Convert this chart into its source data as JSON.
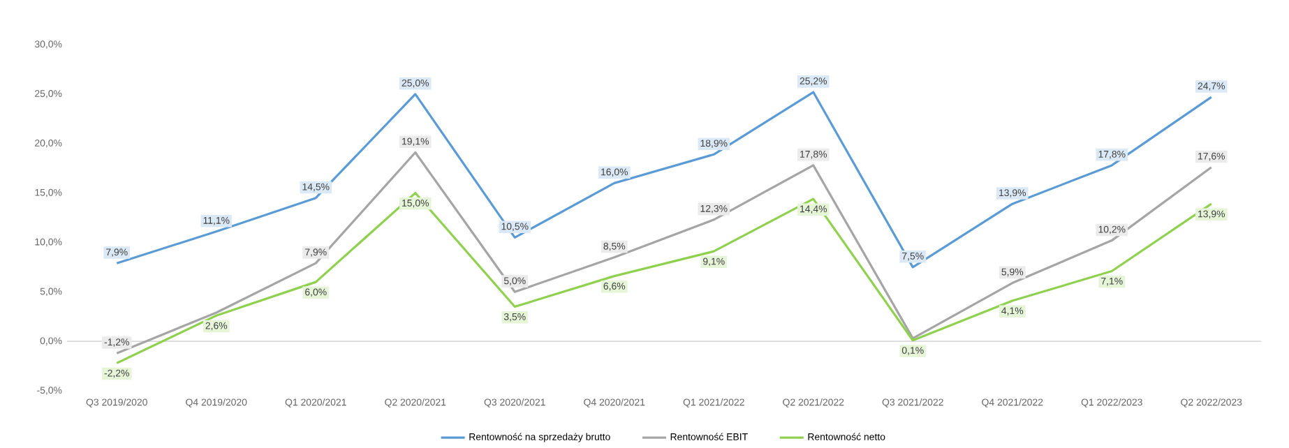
{
  "chart_data": {
    "type": "line",
    "categories": [
      "Q3 2019/2020",
      "Q4 2019/2020",
      "Q1 2020/2021",
      "Q2 2020/2021",
      "Q3 2020/2021",
      "Q4 2020/2021",
      "Q1 2021/2022",
      "Q2 2021/2022",
      "Q3 2021/2022",
      "Q4 2021/2022",
      "Q1 2022/2023",
      "Q2 2022/2023"
    ],
    "series": [
      {
        "name": "Rentowność na sprzedaży brutto",
        "color": "#5b9bd5",
        "values": [
          7.9,
          11.1,
          14.5,
          25.0,
          10.5,
          16.0,
          18.9,
          25.2,
          7.5,
          13.9,
          17.8,
          24.7
        ],
        "value_labels": [
          "7,9%",
          "11,1%",
          "14,5%",
          "25,0%",
          "10,5%",
          "16,0%",
          "18,9%",
          "25,2%",
          "7,5%",
          "13,9%",
          "17,8%",
          "24,7%"
        ]
      },
      {
        "name": "Rentowność EBIT",
        "color": "#a5a5a5",
        "values": [
          -1.2,
          2.9,
          7.9,
          19.1,
          5.0,
          8.5,
          12.3,
          17.8,
          0.3,
          5.9,
          10.2,
          17.6
        ],
        "value_labels": [
          "-1,2%",
          null,
          "7,9%",
          "19,1%",
          "5,0%",
          "8,5%",
          "12,3%",
          "17,8%",
          null,
          "5,9%",
          "10,2%",
          "17,6%"
        ]
      },
      {
        "name": "Rentowność netto",
        "color": "#8fd14f",
        "values": [
          -2.2,
          2.6,
          6.0,
          15.0,
          3.5,
          6.6,
          9.1,
          14.4,
          0.1,
          4.1,
          7.1,
          13.9
        ],
        "value_labels": [
          "-2,2%",
          "2,6%",
          "6,0%",
          "15,0%",
          "3,5%",
          "6,6%",
          "9,1%",
          "14,4%",
          "0,1%",
          "4,1%",
          "7,1%",
          "13,9%"
        ]
      }
    ],
    "ylim": [
      -5,
      30
    ],
    "yticks": [
      {
        "value": -5,
        "label": "-5,0%"
      },
      {
        "value": 0,
        "label": "0,0%"
      },
      {
        "value": 5,
        "label": "5,0%"
      },
      {
        "value": 10,
        "label": "10,0%"
      },
      {
        "value": 15,
        "label": "15,0%"
      },
      {
        "value": 20,
        "label": "20,0%"
      },
      {
        "value": 25,
        "label": "25,0%"
      },
      {
        "value": 30,
        "label": "30,0%"
      }
    ],
    "ref_lines": [
      {
        "axis": "y",
        "value": 0,
        "color": "#d9d9d9"
      }
    ],
    "legend": "bottom",
    "line_style": "solid"
  }
}
